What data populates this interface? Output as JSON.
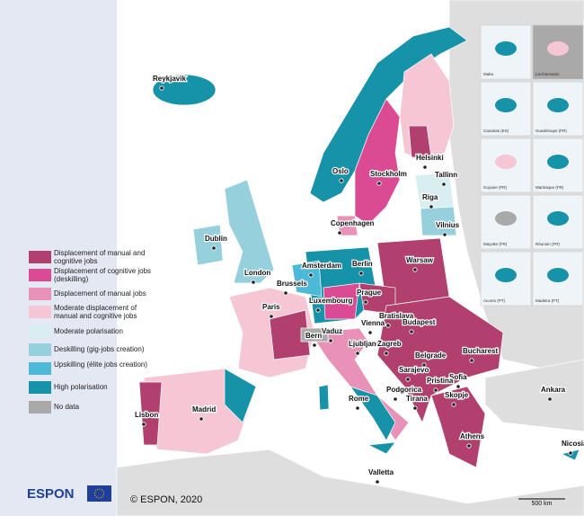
{
  "legend": [
    {
      "label": "Displacement of manual and cognitive jobs",
      "color": "#b2406f"
    },
    {
      "label": "Displacement of cognitive jobs (deskilling)",
      "color": "#db4b93"
    },
    {
      "label": "Displacement of manual jobs",
      "color": "#e992b8"
    },
    {
      "label": "Moderate displacement of manual and cognitive jobs",
      "color": "#f5c7d5"
    },
    {
      "label": "Moderate polarisation",
      "color": "#d8eef1"
    },
    {
      "label": "Deskilling (gig-jobs creation)",
      "color": "#97d0dd"
    },
    {
      "label": "Upskilling (élite jobs creation)",
      "color": "#4cb9d9"
    },
    {
      "label": "High polarisation",
      "color": "#1692a9"
    },
    {
      "label": "No data",
      "color": "#a9a9a9"
    }
  ],
  "cities": [
    "Reykjavik",
    "Oslo",
    "Stockholm",
    "Helsinki",
    "Tallinn",
    "Riga",
    "Copenhagen",
    "Vilnius",
    "Dublin",
    "London",
    "Amsterdam",
    "Berlin",
    "Warsaw",
    "Brussels",
    "Luxembourg",
    "Prague",
    "Paris",
    "Bratislava",
    "Vienna",
    "Budapest",
    "Bern",
    "Vaduz",
    "Ljubljana",
    "Zagreb",
    "Belgrade",
    "Bucharest",
    "Sarajevo",
    "Sofia",
    "Pristina",
    "Podgorica",
    "Skopje",
    "Tirana",
    "Rome",
    "Madrid",
    "Lisbon",
    "Ankara",
    "Athens",
    "Nicosia",
    "Valletta"
  ],
  "insets": [
    "Malta",
    "Liechtenstein",
    "Canarias (ES)",
    "Guadeloupe (FR)",
    "Guyane (FR)",
    "Martinique (FR)",
    "Mayotte (FR)",
    "Réunion (FR)",
    "Acores (PT)",
    "Madeira (PT)"
  ],
  "copyright": "© ESPON, 2020",
  "scale": "500 km",
  "logo": "ESPON"
}
